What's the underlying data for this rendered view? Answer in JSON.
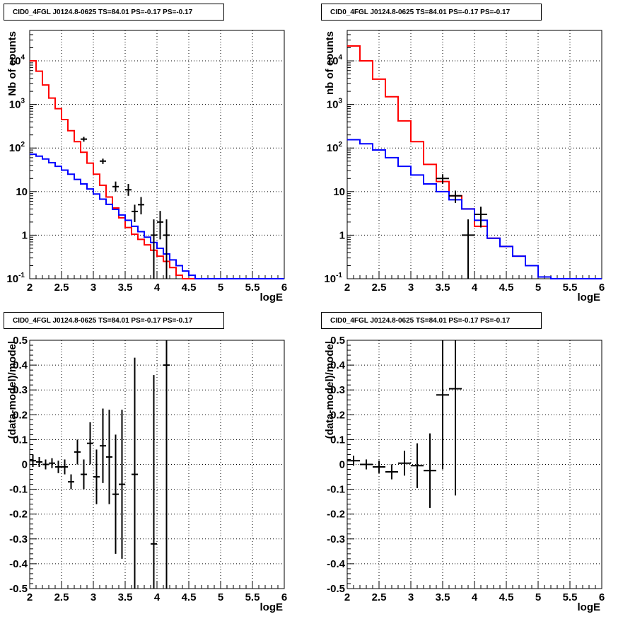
{
  "chart_data": [
    {
      "type": "step-histogram",
      "title": "CID0_4FGL J0124.8-0625 TS=84.01 PS=-0.17 PS=-0.17",
      "xlabel": "logE",
      "ylabel": "Nb of counts",
      "log_y": true,
      "xlim": [
        2,
        6
      ],
      "ylim": [
        0.1,
        50000
      ],
      "grid": true,
      "x_ticks": [
        "2",
        "2.5",
        "3",
        "3.5",
        "4",
        "4.5",
        "5",
        "5.5",
        "6"
      ],
      "y_ticks": [
        "10^-1",
        "1",
        "10",
        "10^2",
        "10^3",
        "10^4"
      ],
      "bin_edges": [
        2.0,
        2.1,
        2.2,
        2.3,
        2.4,
        2.5,
        2.6,
        2.7,
        2.8,
        2.9,
        3.0,
        3.1,
        3.2,
        3.3,
        3.4,
        3.5,
        3.6,
        3.7,
        3.8,
        3.9,
        4.0,
        4.1,
        4.2,
        4.3,
        4.4,
        4.5,
        4.6,
        4.7,
        4.8,
        4.9,
        5.0,
        5.1,
        5.2,
        5.3,
        5.4,
        5.5,
        5.6,
        5.7,
        5.8,
        5.9,
        6.0
      ],
      "series": [
        {
          "color": "#ff0000",
          "kind": "step",
          "values": [
            10000,
            5800,
            2800,
            1400,
            800,
            450,
            250,
            140,
            80,
            45,
            25,
            14,
            7.5,
            4.2,
            2.5,
            1.5,
            1.05,
            0.8,
            0.6,
            0.45,
            0.33,
            0.25,
            0.18,
            0.12,
            0.1,
            0.1,
            0.1,
            0.1,
            0.1,
            0.1,
            0.1,
            0.1,
            0.1,
            0.1,
            0.1,
            0.1,
            0.1,
            0.1,
            0.1,
            0.1
          ]
        },
        {
          "color": "#0000ff",
          "kind": "step",
          "values": [
            72,
            65,
            56,
            46,
            38,
            31,
            25,
            19,
            15,
            11.5,
            8.8,
            6.7,
            5.1,
            3.9,
            2.9,
            2.2,
            1.6,
            1.2,
            0.9,
            0.68,
            0.5,
            0.37,
            0.27,
            0.2,
            0.15,
            0.12,
            0.1,
            0.1,
            0.1,
            0.1,
            0.1,
            0.1,
            0.1,
            0.1,
            0.1,
            0.1,
            0.1,
            0.1,
            0.1,
            0.1
          ]
        },
        {
          "color": "#000000",
          "kind": "errorbar",
          "points": [
            {
              "x": 2.85,
              "y": 160,
              "lo": 140,
              "hi": 180
            },
            {
              "x": 3.15,
              "y": 50,
              "lo": 43,
              "hi": 57
            },
            {
              "x": 3.35,
              "y": 13,
              "lo": 10,
              "hi": 17
            },
            {
              "x": 3.55,
              "y": 11,
              "lo": 8,
              "hi": 15
            },
            {
              "x": 3.65,
              "y": 3.5,
              "lo": 2,
              "hi": 5
            },
            {
              "x": 3.75,
              "y": 5,
              "lo": 3,
              "hi": 7.5
            },
            {
              "x": 3.95,
              "y": 1,
              "lo": 0.1,
              "hi": 2.3
            },
            {
              "x": 4.05,
              "y": 2,
              "lo": 0.8,
              "hi": 3.6
            },
            {
              "x": 4.15,
              "y": 1,
              "lo": 0.1,
              "hi": 2.3
            }
          ]
        }
      ]
    },
    {
      "type": "step-histogram",
      "title": "CID0_4FGL J0124.8-0625 TS=84.01 PS=-0.17 PS=-0.17",
      "xlabel": "logE",
      "ylabel": "nb of counts",
      "log_y": true,
      "xlim": [
        2,
        6
      ],
      "ylim": [
        0.1,
        50000
      ],
      "grid": true,
      "x_ticks": [
        "2",
        "2.5",
        "3",
        "3.5",
        "4",
        "4.5",
        "5",
        "5.5",
        "6"
      ],
      "y_ticks": [
        "10^-1",
        "1",
        "10",
        "10^2",
        "10^3",
        "10^4"
      ],
      "bin_edges": [
        2.0,
        2.2,
        2.4,
        2.6,
        2.8,
        3.0,
        3.2,
        3.4,
        3.6,
        3.8,
        4.0,
        4.2,
        4.4,
        4.6,
        4.8,
        5.0,
        5.2,
        5.4,
        5.6,
        5.8,
        6.0
      ],
      "series": [
        {
          "color": "#ff0000",
          "kind": "step",
          "values": [
            22000,
            10000,
            3800,
            1500,
            420,
            140,
            42,
            17,
            8,
            4,
            1.6,
            0.85,
            0.55,
            0.33,
            0.2,
            0.11,
            0.1,
            0.1,
            0.1,
            0.1
          ]
        },
        {
          "color": "#0000ff",
          "kind": "step",
          "values": [
            155,
            125,
            90,
            60,
            38,
            24,
            15,
            10,
            6.5,
            4,
            2.2,
            0.85,
            0.55,
            0.33,
            0.2,
            0.11,
            0.1,
            0.1,
            0.1,
            0.1
          ]
        },
        {
          "color": "#000000",
          "kind": "errorbar",
          "points": [
            {
              "x": 3.5,
              "y": 20,
              "lo": 15,
              "hi": 25
            },
            {
              "x": 3.7,
              "y": 8,
              "lo": 5.5,
              "hi": 10.5
            },
            {
              "x": 3.9,
              "y": 1,
              "lo": 0.1,
              "hi": 2.3
            },
            {
              "x": 4.1,
              "y": 3,
              "lo": 1.5,
              "hi": 4.5
            }
          ]
        }
      ]
    },
    {
      "type": "errorbar",
      "title": "CID0_4FGL J0124.8-0625 TS=84.01 PS=-0.17 PS=-0.17",
      "xlabel": "logE",
      "ylabel": "(data-model)/model",
      "xlim": [
        2,
        6
      ],
      "ylim": [
        -0.5,
        0.5
      ],
      "grid": true,
      "x_ticks": [
        "2",
        "2.5",
        "3",
        "3.5",
        "4",
        "4.5",
        "5",
        "5.5",
        "6"
      ],
      "y_ticks": [
        "-0.5",
        "-0.4",
        "-0.3",
        "-0.2",
        "-0.1",
        "0",
        "0.1",
        "0.2",
        "0.3",
        "0.4",
        "0.5"
      ],
      "xerr": 0.05,
      "points": [
        {
          "x": 2.05,
          "y": 0.015,
          "err": 0.025
        },
        {
          "x": 2.15,
          "y": 0.01,
          "err": 0.02
        },
        {
          "x": 2.25,
          "y": 0.0,
          "err": 0.02
        },
        {
          "x": 2.35,
          "y": 0.005,
          "err": 0.02
        },
        {
          "x": 2.45,
          "y": -0.01,
          "err": 0.025
        },
        {
          "x": 2.55,
          "y": -0.01,
          "err": 0.03
        },
        {
          "x": 2.65,
          "y": -0.07,
          "err": 0.03
        },
        {
          "x": 2.75,
          "y": 0.05,
          "err": 0.05
        },
        {
          "x": 2.85,
          "y": -0.04,
          "err": 0.06
        },
        {
          "x": 2.95,
          "y": 0.085,
          "err": 0.085
        },
        {
          "x": 3.05,
          "y": -0.05,
          "err": 0.11
        },
        {
          "x": 3.15,
          "y": 0.075,
          "err": 0.15
        },
        {
          "x": 3.25,
          "y": 0.03,
          "err": 0.19
        },
        {
          "x": 3.35,
          "y": -0.12,
          "err": 0.24
        },
        {
          "x": 3.45,
          "y": -0.08,
          "err": 0.3
        },
        {
          "x": 3.65,
          "y": -0.04,
          "err": 0.47
        },
        {
          "x": 3.95,
          "y": -0.32,
          "err": 0.68
        },
        {
          "x": 4.15,
          "y": 0.4,
          "err": 0.9
        }
      ]
    },
    {
      "type": "errorbar",
      "title": "CID0_4FGL J0124.8-0625 TS=84.01 PS=-0.17 PS=-0.17",
      "xlabel": "logE",
      "ylabel": "(data-model)/model",
      "xlim": [
        2,
        6
      ],
      "ylim": [
        -0.5,
        0.5
      ],
      "grid": true,
      "x_ticks": [
        "2",
        "2.5",
        "3",
        "3.5",
        "4",
        "4.5",
        "5",
        "5.5",
        "6"
      ],
      "y_ticks": [
        "-0.5",
        "-0.4",
        "-0.3",
        "-0.2",
        "-0.1",
        "0",
        "0.1",
        "0.2",
        "0.3",
        "0.4",
        "0.5"
      ],
      "xerr": 0.1,
      "points": [
        {
          "x": 2.1,
          "y": 0.015,
          "err": 0.02
        },
        {
          "x": 2.3,
          "y": 0.0,
          "err": 0.02
        },
        {
          "x": 2.5,
          "y": -0.01,
          "err": 0.025
        },
        {
          "x": 2.7,
          "y": -0.03,
          "err": 0.03
        },
        {
          "x": 2.9,
          "y": 0.005,
          "err": 0.05
        },
        {
          "x": 3.1,
          "y": -0.005,
          "err": 0.09
        },
        {
          "x": 3.3,
          "y": -0.025,
          "err": 0.15
        },
        {
          "x": 3.5,
          "y": 0.28,
          "err": 0.3
        },
        {
          "x": 3.7,
          "y": 0.305,
          "err": 0.43
        }
      ]
    }
  ]
}
